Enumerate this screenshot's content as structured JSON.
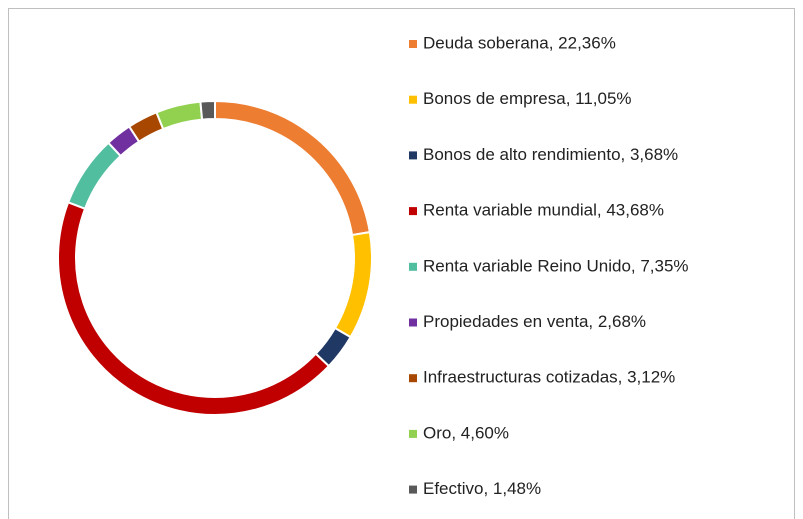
{
  "chart_data": {
    "type": "donut",
    "categories": [
      "Deuda soberana, 22,36%",
      "Bonos de empresa, 11,05%",
      "Bonos de alto rendimiento, 3,68%",
      "Renta variable mundial, 43,68%",
      "Renta variable Reino Unido, 7,35%",
      "Propiedades en venta, 2,68%",
      "Infraestructuras cotizadas, 3,12%",
      "Oro, 4,60%",
      "Efectivo, 1,48%"
    ],
    "values": [
      22.36,
      11.05,
      3.68,
      43.68,
      7.35,
      2.68,
      3.12,
      4.6,
      1.48
    ],
    "colors": [
      "#ED7D31",
      "#FFC000",
      "#203864",
      "#C00000",
      "#52BEA0",
      "#7030A0",
      "#A84800",
      "#92D050",
      "#595959"
    ],
    "legend": "right"
  }
}
